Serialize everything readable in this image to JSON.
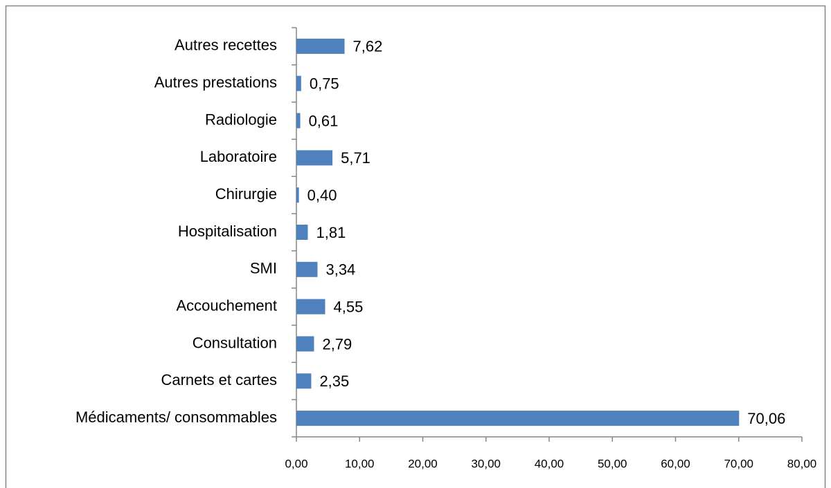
{
  "chart_data": {
    "type": "bar",
    "orientation": "horizontal",
    "categories": [
      "Médicaments/ consommables",
      "Carnets et cartes",
      "Consultation",
      "Accouchement",
      "SMI",
      "Hospitalisation",
      "Chirurgie",
      "Laboratoire",
      "Radiologie",
      "Autres prestations",
      "Autres recettes"
    ],
    "values": [
      70.06,
      2.35,
      2.79,
      4.55,
      3.34,
      1.81,
      0.4,
      5.71,
      0.61,
      0.75,
      7.62
    ],
    "value_labels": [
      "70,06",
      "2,35",
      "2,79",
      "4,55",
      "3,34",
      "1,81",
      "0,40",
      "5,71",
      "0,61",
      "0,75",
      "7,62"
    ],
    "color": "#4f81bd",
    "xlim": [
      0,
      80
    ],
    "xticks": [
      {
        "value": 0,
        "label": "0,00"
      },
      {
        "value": 10,
        "label": "10,00"
      },
      {
        "value": 20,
        "label": "20,00"
      },
      {
        "value": 30,
        "label": "30,00"
      },
      {
        "value": 40,
        "label": "40,00"
      },
      {
        "value": 50,
        "label": "50,00"
      },
      {
        "value": 60,
        "label": "60,00"
      },
      {
        "value": 70,
        "label": "70,00"
      },
      {
        "value": 80,
        "label": "80,00"
      }
    ],
    "grid": false
  }
}
